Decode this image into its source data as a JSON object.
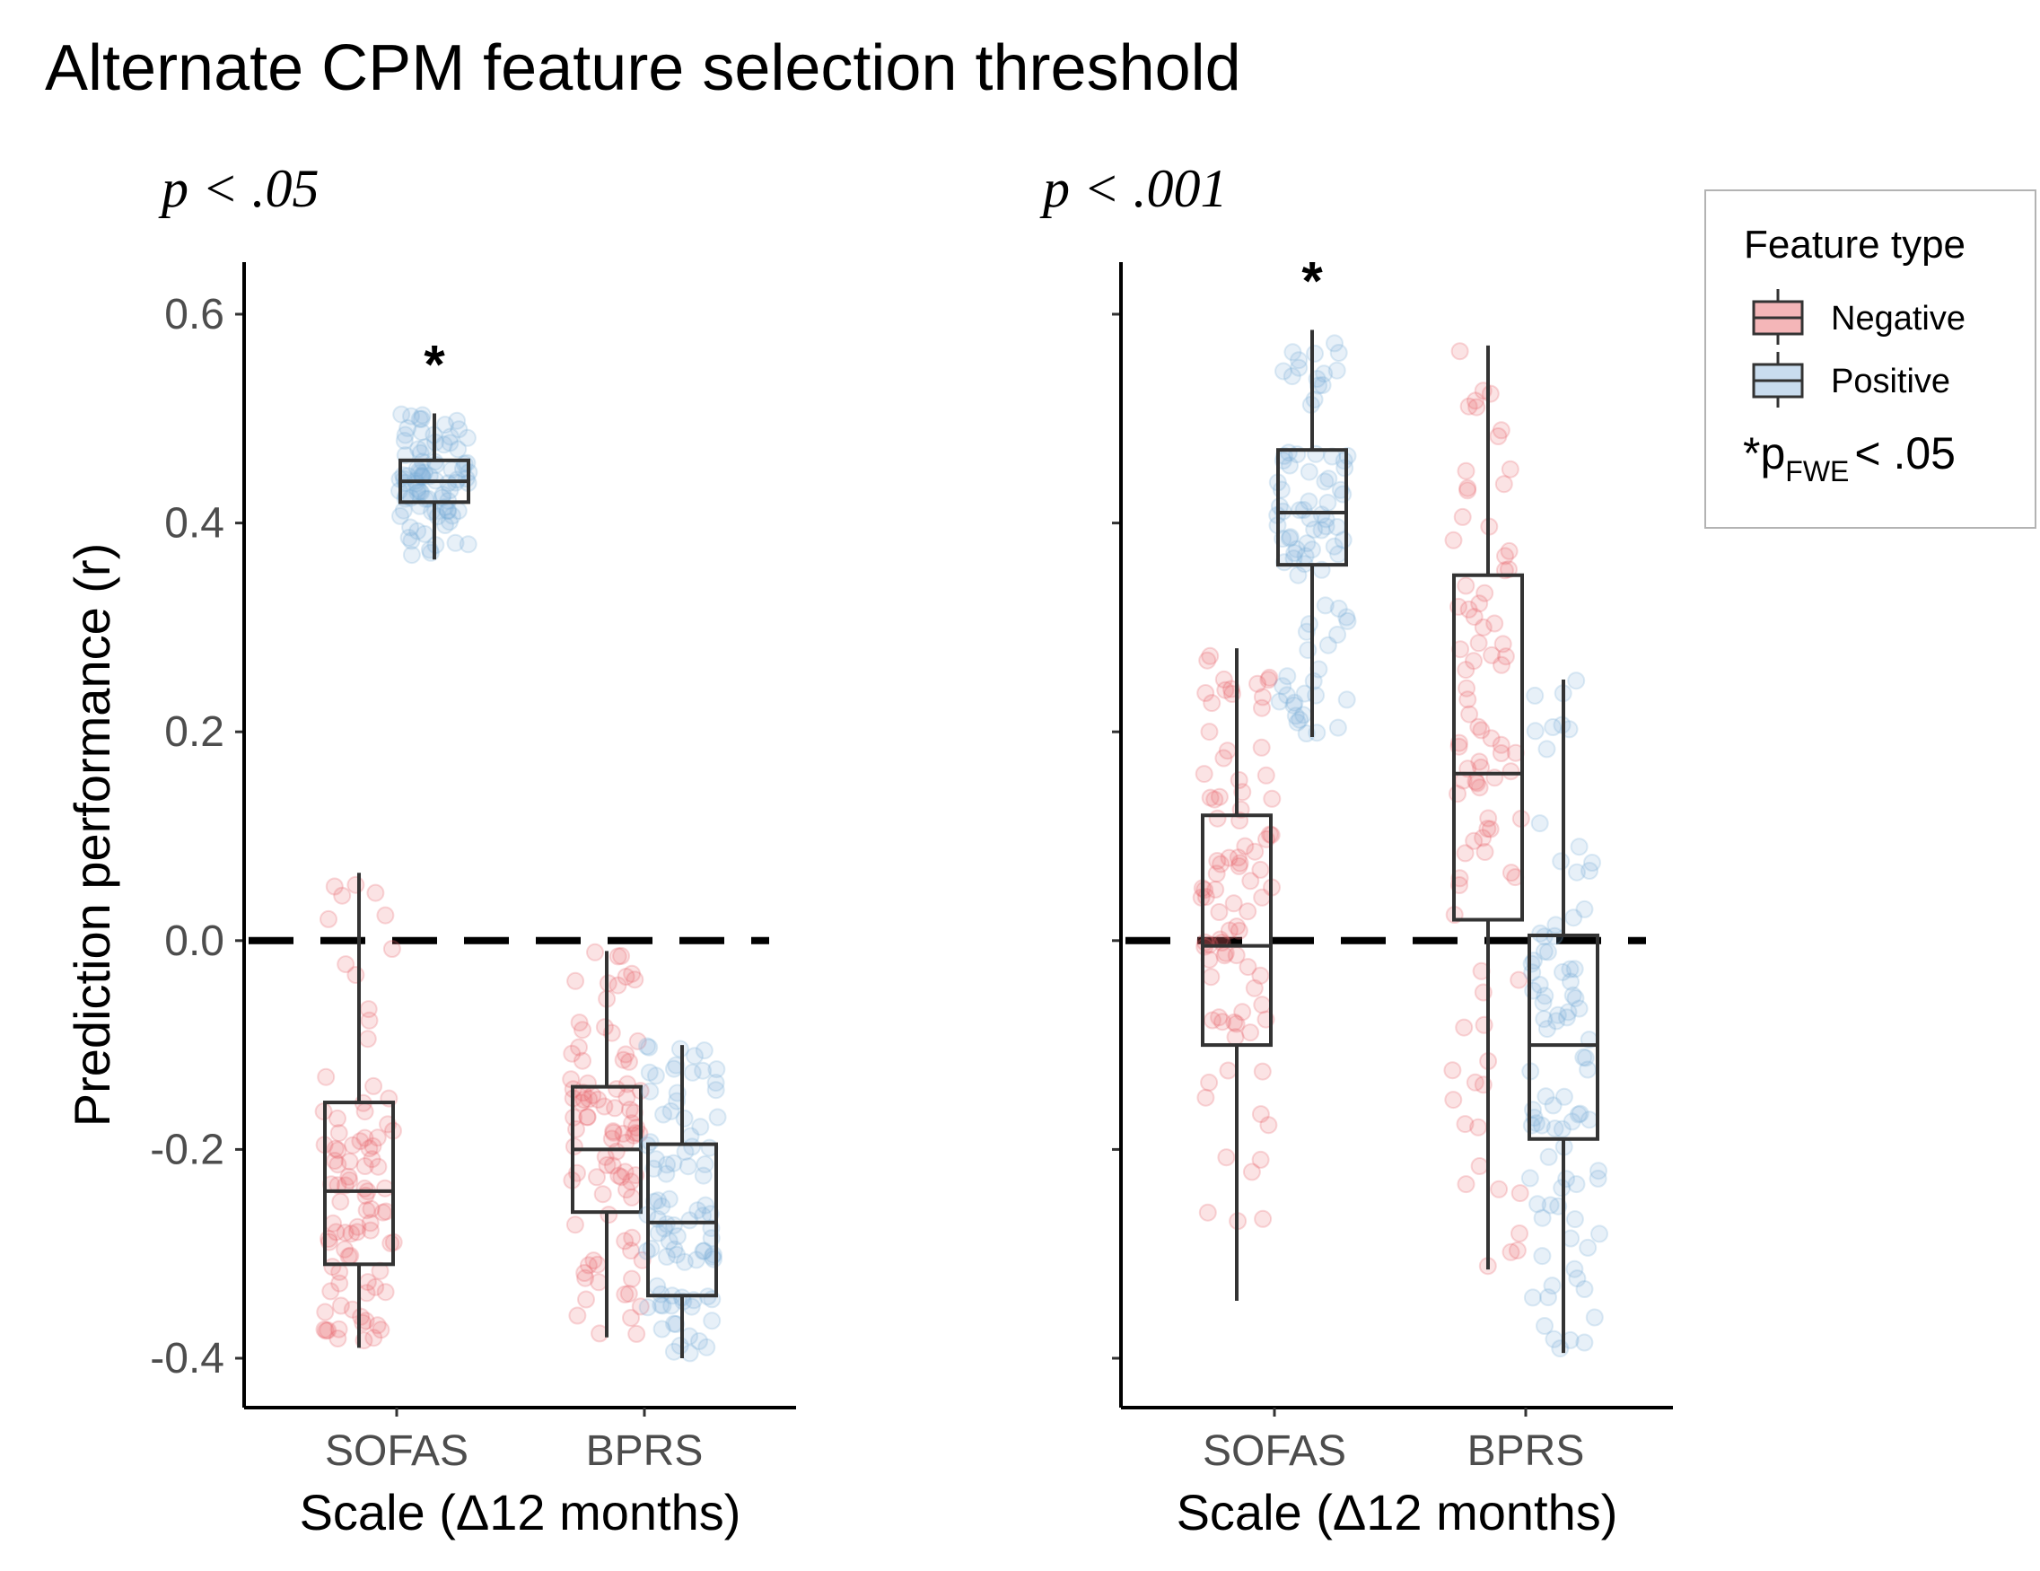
{
  "figure_title": "Alternate CPM feature selection threshold",
  "legend": {
    "title": "Feature type",
    "items": [
      {
        "name": "Negative",
        "fill": "#f4b6b8",
        "point": "#e8636a"
      },
      {
        "name": "Positive",
        "fill": "#c9dcee",
        "point": "#7aaed8"
      }
    ],
    "note_star": "*",
    "note_p": "p",
    "note_sub": "FWE",
    "note_rest": "< .05"
  },
  "chart_data": [
    {
      "type": "box",
      "title": "p < .05",
      "xlabel": "Scale (Δ12 months)",
      "ylabel": "Prediction performance (r)",
      "categories": [
        "SOFAS",
        "BPRS"
      ],
      "ylim": [
        -0.45,
        0.65
      ],
      "yticks": [
        "0.6",
        "0.4",
        "0.2",
        "0.0",
        "-0.2",
        "-0.4"
      ],
      "reference_line": 0.0,
      "series": [
        {
          "name": "Negative",
          "boxes": [
            {
              "category": "SOFAS",
              "min": -0.39,
              "q1": -0.31,
              "median": -0.24,
              "q3": -0.155,
              "max": 0.065,
              "sig": false
            },
            {
              "category": "BPRS",
              "min": -0.38,
              "q1": -0.26,
              "median": -0.2,
              "q3": -0.14,
              "max": -0.01,
              "sig": false
            }
          ]
        },
        {
          "name": "Positive",
          "boxes": [
            {
              "category": "SOFAS",
              "min": 0.365,
              "q1": 0.42,
              "median": 0.44,
              "q3": 0.46,
              "max": 0.505,
              "sig": true
            },
            {
              "category": "BPRS",
              "min": -0.4,
              "q1": -0.34,
              "median": -0.27,
              "q3": -0.195,
              "max": -0.1,
              "sig": false
            }
          ]
        }
      ]
    },
    {
      "type": "box",
      "title": "p < .001",
      "xlabel": "Scale (Δ12 months)",
      "ylabel": "",
      "categories": [
        "SOFAS",
        "BPRS"
      ],
      "ylim": [
        -0.45,
        0.65
      ],
      "yticks": [],
      "reference_line": 0.0,
      "series": [
        {
          "name": "Negative",
          "boxes": [
            {
              "category": "SOFAS",
              "min": -0.345,
              "q1": -0.1,
              "median": -0.005,
              "q3": 0.12,
              "max": 0.28,
              "sig": false
            },
            {
              "category": "BPRS",
              "min": -0.315,
              "q1": 0.02,
              "median": 0.16,
              "q3": 0.35,
              "max": 0.57,
              "sig": false
            }
          ]
        },
        {
          "name": "Positive",
          "boxes": [
            {
              "category": "SOFAS",
              "min": 0.195,
              "q1": 0.36,
              "median": 0.41,
              "q3": 0.47,
              "max": 0.585,
              "sig": true
            },
            {
              "category": "BPRS",
              "min": -0.395,
              "q1": -0.19,
              "median": -0.1,
              "q3": 0.005,
              "max": 0.25,
              "sig": false
            }
          ]
        }
      ]
    }
  ]
}
